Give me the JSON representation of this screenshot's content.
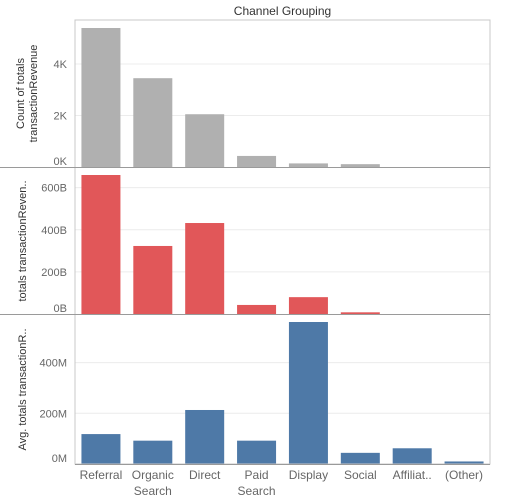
{
  "chart_data": {
    "type": "bar",
    "title": "Channel Grouping",
    "categories": [
      "Referral",
      "Organic Search",
      "Direct",
      "Paid Search",
      "Display",
      "Social",
      "Affiliat..",
      "(Other)"
    ],
    "category_lines": [
      [
        "Referral"
      ],
      [
        "Organic",
        "Search"
      ],
      [
        "Direct"
      ],
      [
        "Paid",
        "Search"
      ],
      [
        "Display"
      ],
      [
        "Social"
      ],
      [
        "Affiliat.."
      ],
      [
        "(Other)"
      ]
    ],
    "panels": [
      {
        "name": "count",
        "ylabel_lines": [
          "Count of totals",
          "transactionRevenue"
        ],
        "color": "#b0b0b0",
        "ylim": [
          0,
          5400
        ],
        "ticks": [
          0,
          2000,
          4000
        ],
        "tick_labels": [
          "0K",
          "2K",
          "4K"
        ],
        "values": [
          5400,
          3450,
          2050,
          430,
          140,
          110,
          0,
          0
        ]
      },
      {
        "name": "sum",
        "ylabel_lines": [
          "totals transactionReven.."
        ],
        "color": "#e15759",
        "ylim": [
          0,
          660
        ],
        "ticks": [
          0,
          200,
          400,
          600
        ],
        "tick_labels": [
          "0B",
          "200B",
          "400B",
          "600B"
        ],
        "values": [
          660,
          323,
          432,
          43,
          80,
          8,
          0,
          0
        ]
      },
      {
        "name": "avg",
        "ylabel_lines": [
          "Avg. totals transactionR.."
        ],
        "color": "#4e79a7",
        "ylim": [
          0,
          560
        ],
        "ticks": [
          0,
          200,
          400
        ],
        "tick_labels": [
          "0M",
          "200M",
          "400M"
        ],
        "values": [
          118,
          92,
          213,
          92,
          560,
          44,
          62,
          10
        ]
      }
    ]
  }
}
